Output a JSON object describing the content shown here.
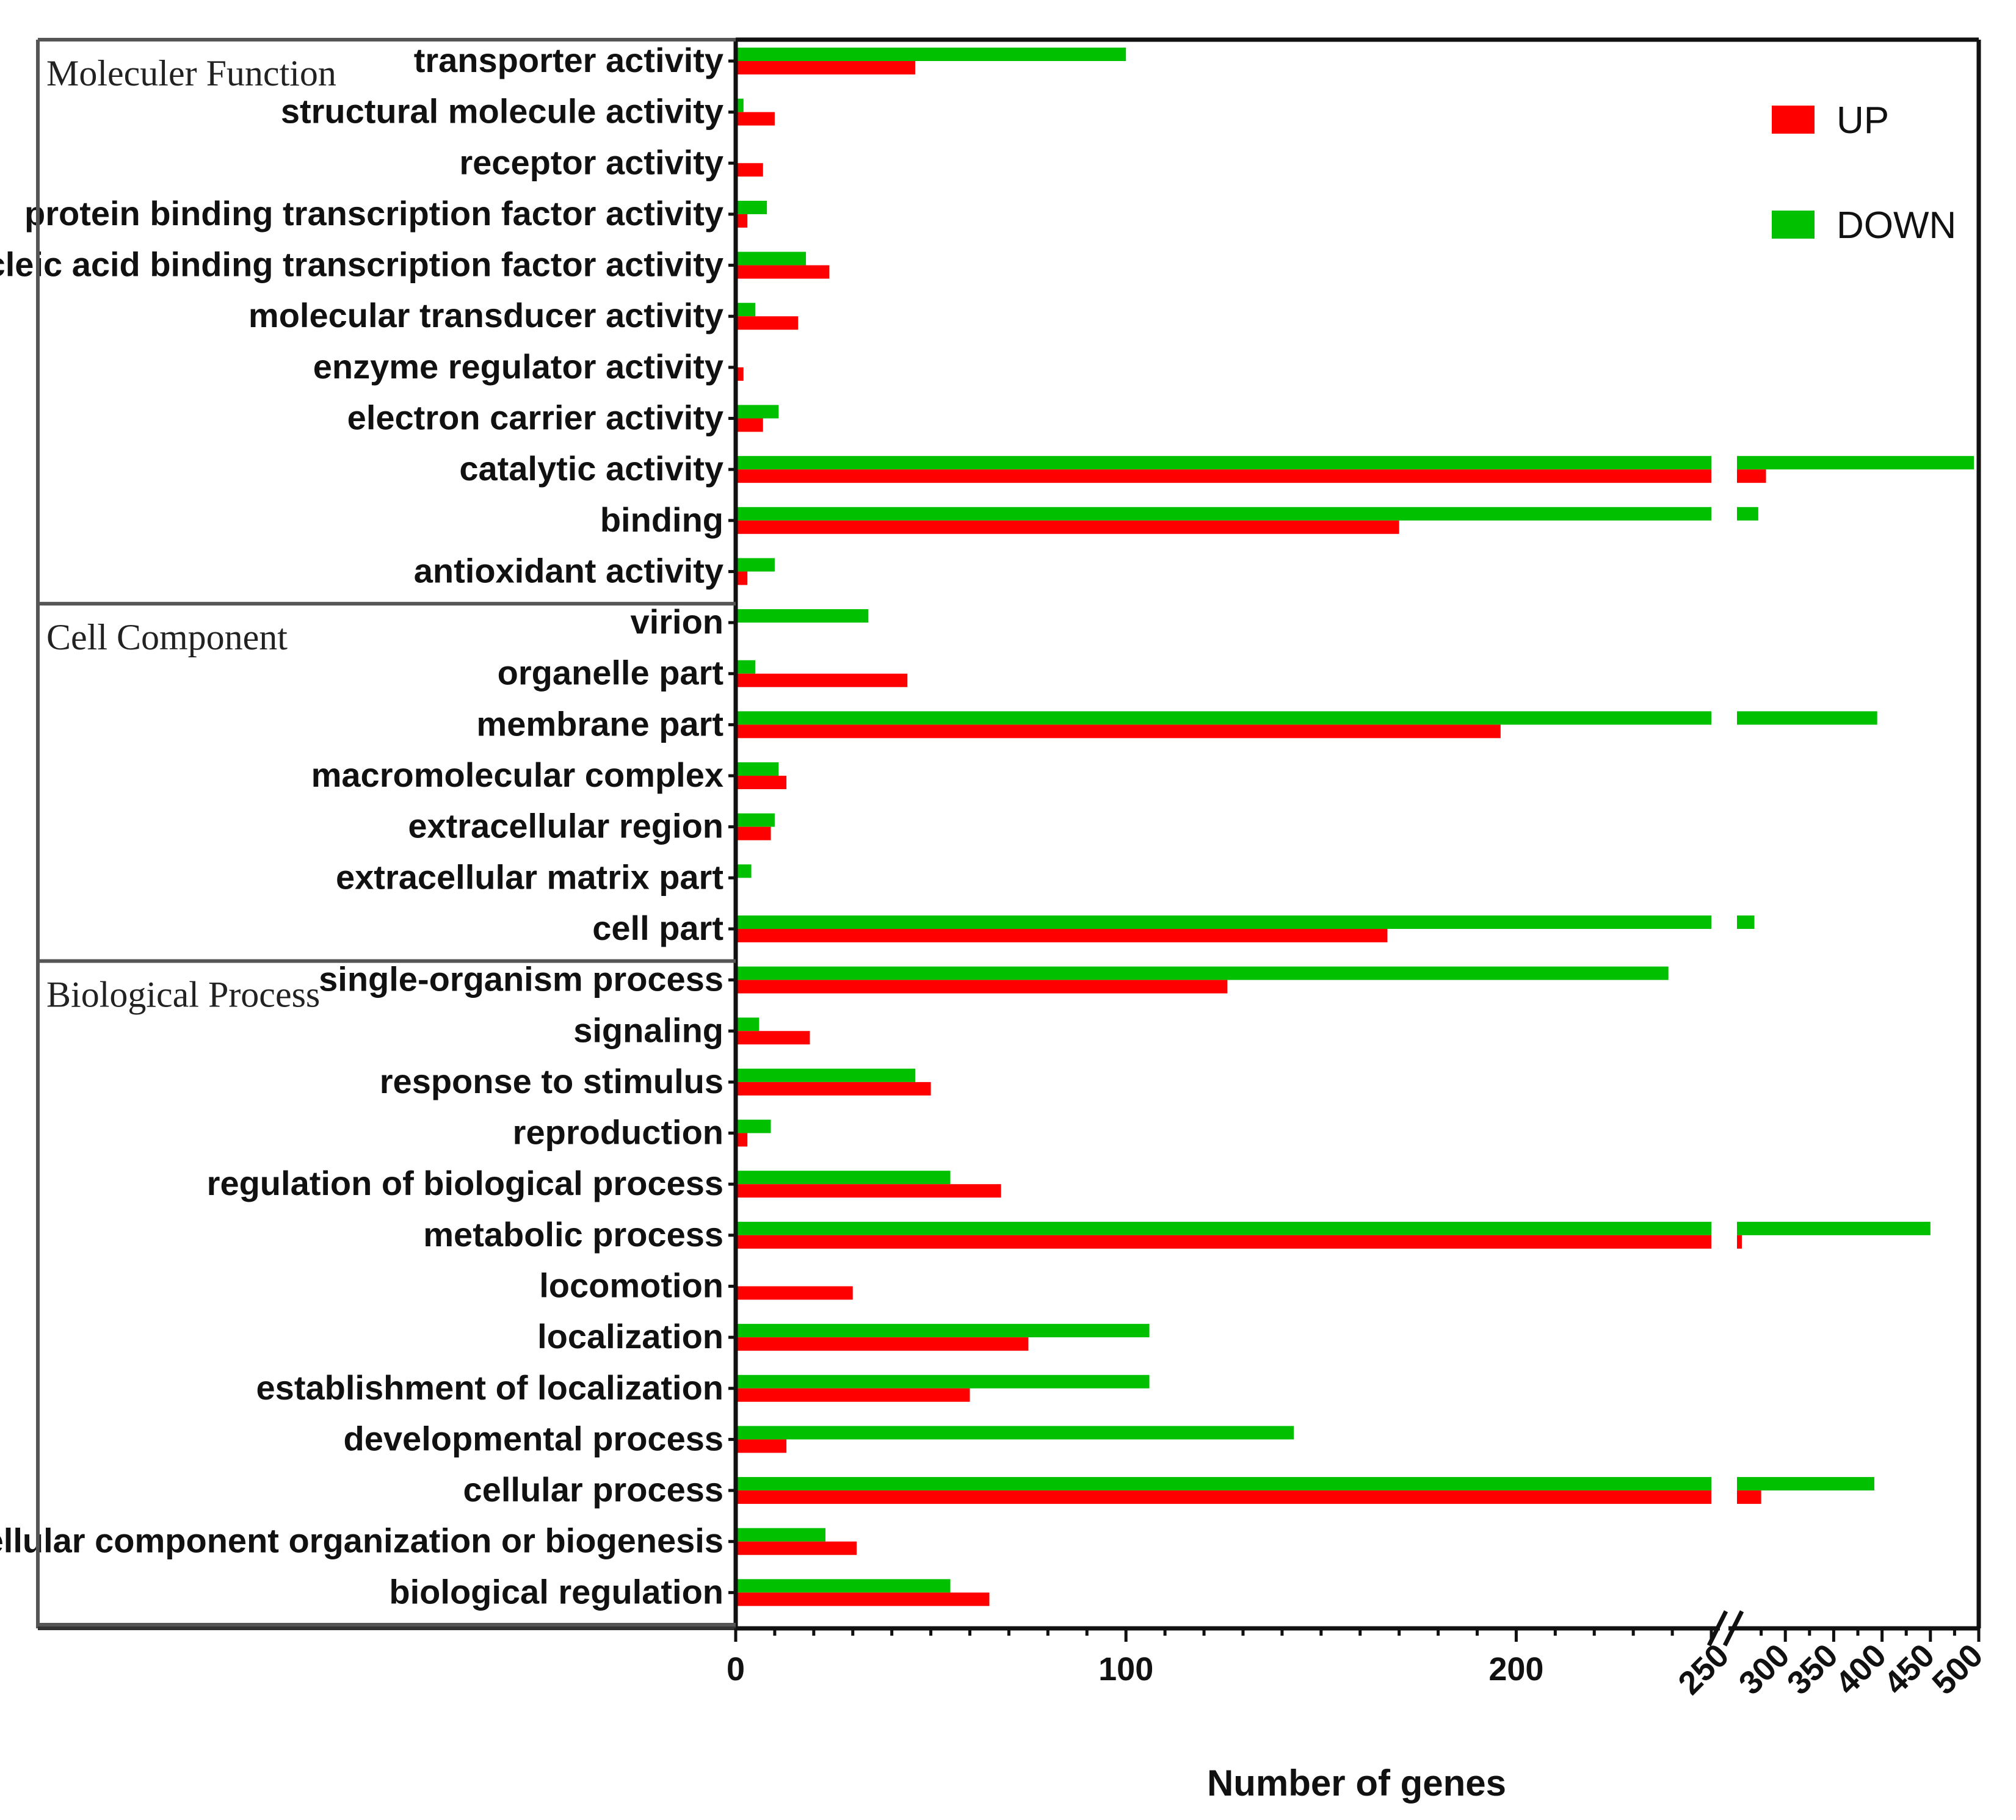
{
  "chart_data": {
    "type": "bar",
    "orientation": "horizontal",
    "xlabel": "Number of genes",
    "x_ticks": [
      "0",
      "100",
      "200",
      "250",
      "300",
      "350",
      "400",
      "450",
      "500"
    ],
    "x_axis_break": {
      "lower_segment": [
        0,
        250
      ],
      "upper_segment": [
        250,
        500
      ]
    },
    "colors": {
      "UP": "#ff0000",
      "DOWN": "#00c000",
      "frame": "#111111",
      "group_line": "#555555"
    },
    "legend": [
      {
        "name": "UP",
        "color": "#ff0000"
      },
      {
        "name": "DOWN",
        "color": "#00c000"
      }
    ],
    "groups": [
      {
        "name": "Moleculer Function",
        "first": 0,
        "last": 10
      },
      {
        "name": "Cell Component",
        "first": 11,
        "last": 17
      },
      {
        "name": "Biological Process",
        "first": 18,
        "last": 30
      }
    ],
    "categories": [
      "transporter activity",
      "structural molecule activity",
      "receptor activity",
      "protein binding transcription factor activity",
      "nucleic acid binding transcription factor activity",
      "molecular transducer activity",
      "enzyme regulator activity",
      "electron carrier activity",
      "catalytic activity",
      "binding",
      "antioxidant activity",
      "virion",
      "organelle part",
      "membrane part",
      "macromolecular complex",
      "extracellular region",
      "extracellular matrix part",
      "cell part",
      "single-organism process",
      "signaling",
      "response to stimulus",
      "reproduction",
      "regulation of biological process",
      "metabolic process",
      "locomotion",
      "localization",
      "establishment of localization",
      "developmental process",
      "cellular process",
      "cellular component organization or biogenesis",
      "biological regulation"
    ],
    "series": [
      {
        "name": "DOWN",
        "values": [
          100,
          2,
          0,
          8,
          18,
          5,
          0,
          11,
          495,
          272,
          10,
          34,
          5,
          395,
          11,
          10,
          4,
          268,
          239,
          6,
          46,
          9,
          55,
          450,
          0,
          106,
          106,
          143,
          392,
          23,
          55
        ]
      },
      {
        "name": "UP",
        "values": [
          46,
          10,
          7,
          3,
          24,
          16,
          2,
          7,
          280,
          170,
          3,
          0,
          44,
          196,
          13,
          9,
          0,
          167,
          126,
          19,
          50,
          3,
          68,
          255,
          30,
          75,
          60,
          13,
          275,
          31,
          65
        ]
      }
    ]
  }
}
